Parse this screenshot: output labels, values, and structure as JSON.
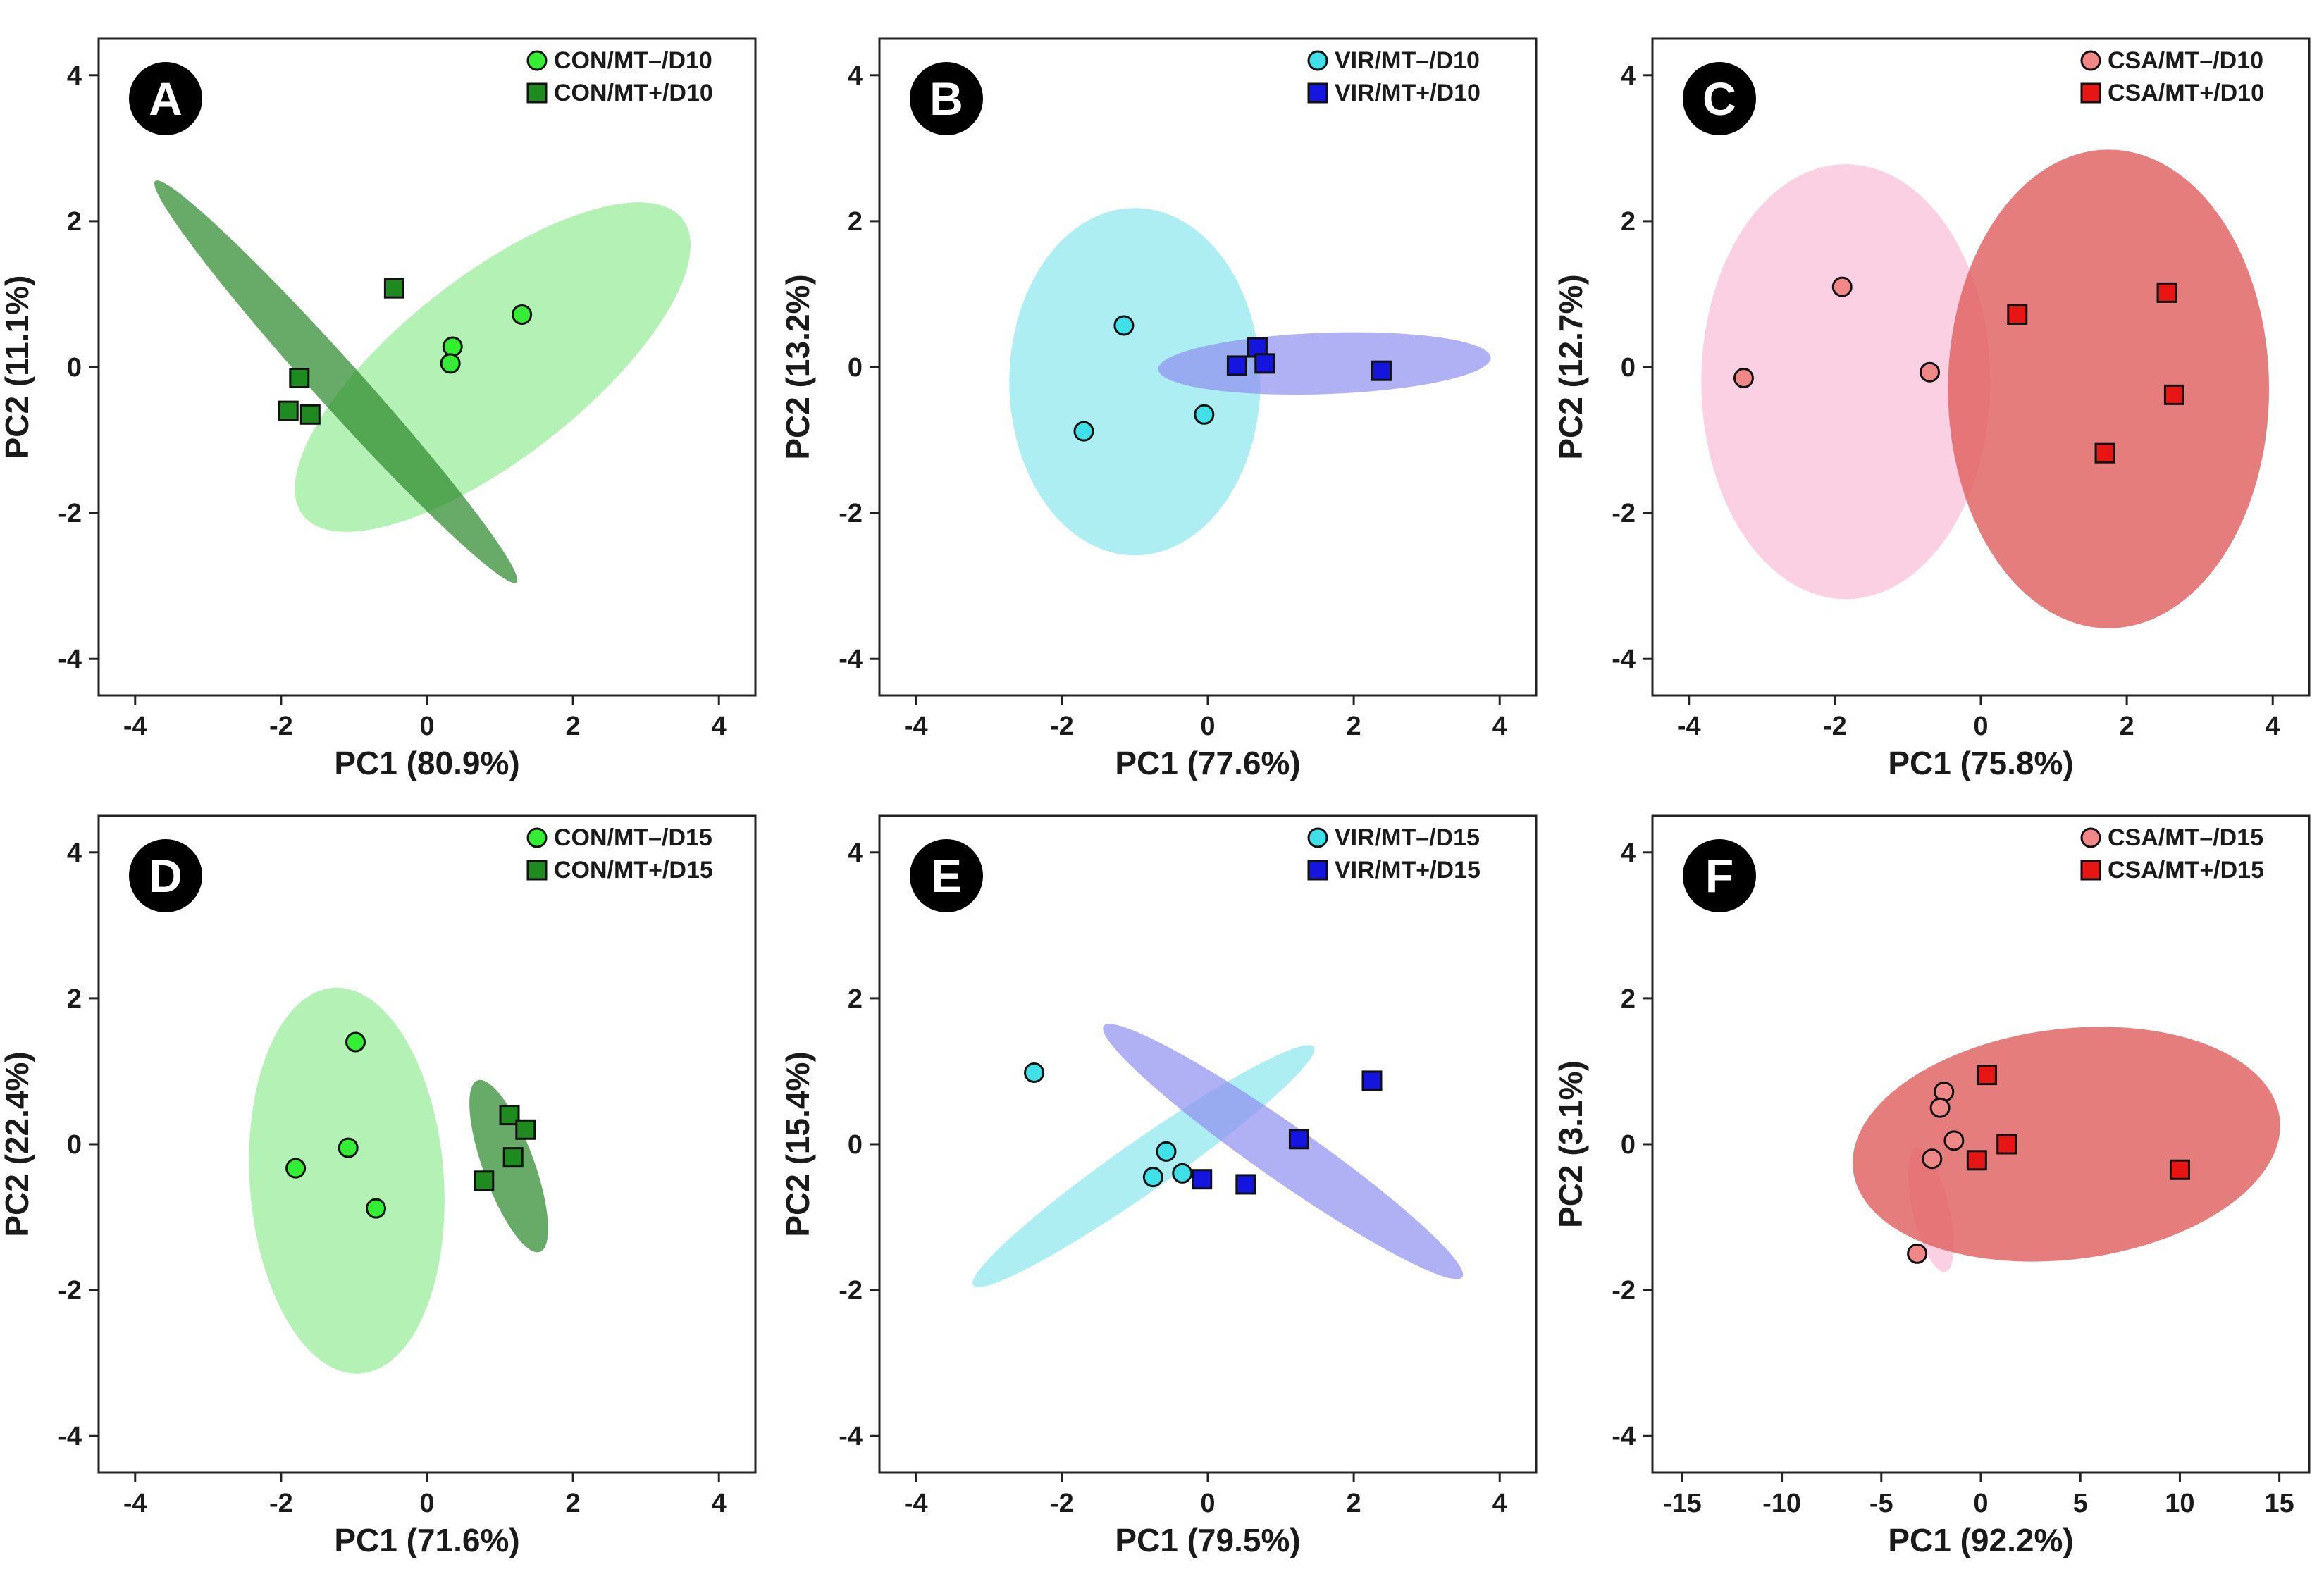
{
  "chart_data": [
    {
      "type": "scatter",
      "panel_label": "A",
      "xlabel": "PC1 (80.9%)",
      "ylabel": "PC2 (11.1%)",
      "xlim": [
        -4.5,
        4.5
      ],
      "ylim": [
        -4.5,
        4.5
      ],
      "xticks": [
        -4,
        -2,
        0,
        2,
        4
      ],
      "yticks": [
        -4,
        -2,
        0,
        2,
        4
      ],
      "xtick_labels": [
        "-4",
        "-2",
        "0",
        "2",
        "4"
      ],
      "ytick_labels": [
        "-4",
        "-2",
        "0",
        "2",
        "4"
      ],
      "legend_position": "top-right",
      "series": [
        {
          "name": "CON/MT–/D10",
          "marker": "circle",
          "color": "#33ee33",
          "ellipse_color": "#86e886",
          "ellipse_opacity": 0.62,
          "ellipse": {
            "cx": 0.9,
            "cy": 0.0,
            "rx": 3.3,
            "ry": 1.25,
            "angle": -38
          },
          "points": [
            [
              1.3,
              0.72
            ],
            [
              0.35,
              0.28
            ],
            [
              0.32,
              0.05
            ]
          ]
        },
        {
          "name": "CON/MT+/D10",
          "marker": "square",
          "color": "#1f8a1f",
          "ellipse_color": "#2e8b2e",
          "ellipse_opacity": 0.72,
          "ellipse": {
            "cx": -1.25,
            "cy": -0.2,
            "rx": 3.7,
            "ry": 0.32,
            "angle": 48
          },
          "points": [
            [
              -0.45,
              1.08
            ],
            [
              -1.75,
              -0.15
            ],
            [
              -1.9,
              -0.6
            ],
            [
              -1.6,
              -0.65
            ]
          ]
        }
      ]
    },
    {
      "type": "scatter",
      "panel_label": "B",
      "xlabel": "PC1 (77.6%)",
      "ylabel": "PC2 (13.2%)",
      "xlim": [
        -4.5,
        4.5
      ],
      "ylim": [
        -4.5,
        4.5
      ],
      "xticks": [
        -4,
        -2,
        0,
        2,
        4
      ],
      "yticks": [
        -4,
        -2,
        0,
        2,
        4
      ],
      "xtick_labels": [
        "-4",
        "-2",
        "0",
        "2",
        "4"
      ],
      "ytick_labels": [
        "-4",
        "-2",
        "0",
        "2",
        "4"
      ],
      "legend_position": "top-right",
      "series": [
        {
          "name": "VIR/MT–/D10",
          "marker": "circle",
          "color": "#40e0e8",
          "ellipse_color": "#8ee8ee",
          "ellipse_opacity": 0.72,
          "ellipse": {
            "cx": -1.0,
            "cy": -0.2,
            "rx": 1.72,
            "ry": 2.38,
            "angle": 0
          },
          "points": [
            [
              -1.15,
              0.57
            ],
            [
              -0.05,
              -0.65
            ],
            [
              -1.7,
              -0.88
            ]
          ]
        },
        {
          "name": "VIR/MT+/D10",
          "marker": "square",
          "color": "#1515e0",
          "ellipse_color": "#8f8ff0",
          "ellipse_opacity": 0.7,
          "ellipse": {
            "cx": 1.6,
            "cy": 0.05,
            "rx": 2.28,
            "ry": 0.42,
            "angle": -2
          },
          "points": [
            [
              0.4,
              0.02
            ],
            [
              0.68,
              0.27
            ],
            [
              0.78,
              0.05
            ],
            [
              2.38,
              -0.05
            ]
          ]
        }
      ]
    },
    {
      "type": "scatter",
      "panel_label": "C",
      "xlabel": "PC1 (75.8%)",
      "ylabel": "PC2 (12.7%)",
      "xlim": [
        -4.5,
        4.5
      ],
      "ylim": [
        -4.5,
        4.5
      ],
      "xticks": [
        -4,
        -2,
        0,
        2,
        4
      ],
      "yticks": [
        -4,
        -2,
        0,
        2,
        4
      ],
      "xtick_labels": [
        "-4",
        "-2",
        "0",
        "2",
        "4"
      ],
      "ytick_labels": [
        "-4",
        "-2",
        "0",
        "2",
        "4"
      ],
      "legend_position": "top-right",
      "series": [
        {
          "name": "CSA/MT–/D10",
          "marker": "circle",
          "color": "#f08888",
          "ellipse_color": "#fbc4dc",
          "ellipse_opacity": 0.8,
          "ellipse": {
            "cx": -1.85,
            "cy": -0.2,
            "rx": 1.98,
            "ry": 2.98,
            "angle": 0
          },
          "points": [
            [
              -1.9,
              1.1
            ],
            [
              -3.25,
              -0.15
            ],
            [
              -0.7,
              -0.07
            ]
          ]
        },
        {
          "name": "CSA/MT+/D10",
          "marker": "square",
          "color": "#e81515",
          "ellipse_color": "#e06060",
          "ellipse_opacity": 0.82,
          "ellipse": {
            "cx": 1.75,
            "cy": -0.3,
            "rx": 2.2,
            "ry": 3.28,
            "angle": 0
          },
          "points": [
            [
              0.5,
              0.72
            ],
            [
              2.55,
              1.02
            ],
            [
              2.65,
              -0.38
            ],
            [
              1.7,
              -1.18
            ]
          ]
        }
      ]
    },
    {
      "type": "scatter",
      "panel_label": "D",
      "xlabel": "PC1 (71.6%)",
      "ylabel": "PC2 (22.4%)",
      "xlim": [
        -4.5,
        4.5
      ],
      "ylim": [
        -4.5,
        4.5
      ],
      "xticks": [
        -4,
        -2,
        0,
        2,
        4
      ],
      "yticks": [
        -4,
        -2,
        0,
        2,
        4
      ],
      "xtick_labels": [
        "-4",
        "-2",
        "0",
        "2",
        "4"
      ],
      "ytick_labels": [
        "-4",
        "-2",
        "0",
        "2",
        "4"
      ],
      "legend_position": "top-right",
      "series": [
        {
          "name": "CON/MT–/D15",
          "marker": "circle",
          "color": "#33ee33",
          "ellipse_color": "#86e886",
          "ellipse_opacity": 0.62,
          "ellipse": {
            "cx": -1.1,
            "cy": -0.5,
            "rx": 1.33,
            "ry": 2.65,
            "angle": -4
          },
          "points": [
            [
              -0.98,
              1.4
            ],
            [
              -1.8,
              -0.33
            ],
            [
              -1.08,
              -0.05
            ],
            [
              -0.7,
              -0.88
            ]
          ]
        },
        {
          "name": "CON/MT+/D15",
          "marker": "square",
          "color": "#1f8a1f",
          "ellipse_color": "#2e8b2e",
          "ellipse_opacity": 0.72,
          "ellipse": {
            "cx": 1.12,
            "cy": -0.3,
            "rx": 1.25,
            "ry": 0.35,
            "angle": 70
          },
          "points": [
            [
              1.13,
              0.4
            ],
            [
              1.35,
              0.2
            ],
            [
              1.18,
              -0.18
            ],
            [
              0.78,
              -0.5
            ]
          ]
        }
      ]
    },
    {
      "type": "scatter",
      "panel_label": "E",
      "xlabel": "PC1 (79.5%)",
      "ylabel": "PC2 (15.4%)",
      "xlim": [
        -4.5,
        4.5
      ],
      "ylim": [
        -4.5,
        4.5
      ],
      "xticks": [
        -4,
        -2,
        0,
        2,
        4
      ],
      "yticks": [
        -4,
        -2,
        0,
        2,
        4
      ],
      "xtick_labels": [
        "-4",
        "-2",
        "0",
        "2",
        "4"
      ],
      "ytick_labels": [
        "-4",
        "-2",
        "0",
        "2",
        "4"
      ],
      "legend_position": "top-right",
      "series": [
        {
          "name": "VIR/MT–/D15",
          "marker": "circle",
          "color": "#40e0e8",
          "ellipse_color": "#8ee8ee",
          "ellipse_opacity": 0.72,
          "ellipse": {
            "cx": -0.88,
            "cy": -0.3,
            "rx": 2.85,
            "ry": 0.35,
            "angle": -35
          },
          "points": [
            [
              -2.38,
              0.98
            ],
            [
              -0.57,
              -0.1
            ],
            [
              -0.75,
              -0.45
            ],
            [
              -0.35,
              -0.4
            ]
          ]
        },
        {
          "name": "VIR/MT+/D15",
          "marker": "square",
          "color": "#1515e0",
          "ellipse_color": "#8f8ff0",
          "ellipse_opacity": 0.7,
          "ellipse": {
            "cx": 1.03,
            "cy": -0.1,
            "rx": 3.0,
            "ry": 0.38,
            "angle": 35
          },
          "points": [
            [
              2.25,
              0.87
            ],
            [
              1.25,
              0.07
            ],
            [
              -0.08,
              -0.48
            ],
            [
              0.52,
              -0.55
            ]
          ]
        }
      ]
    },
    {
      "type": "scatter",
      "panel_label": "F",
      "xlabel": "PC1 (92.2%)",
      "ylabel": "PC2 (3.1%)",
      "xlim": [
        -16.5,
        16.5
      ],
      "ylim": [
        -4.5,
        4.5
      ],
      "xticks": [
        -15,
        -10,
        -5,
        0,
        5,
        10,
        15
      ],
      "yticks": [
        -4,
        -2,
        0,
        2,
        4
      ],
      "xtick_labels": [
        "-15",
        "-10",
        "-5",
        "0",
        "5",
        "10",
        "15"
      ],
      "ytick_labels": [
        "-4",
        "-2",
        "0",
        "2",
        "4"
      ],
      "legend_position": "top-right",
      "series": [
        {
          "name": "CSA/MT–/D15",
          "marker": "circle",
          "color": "#f08888",
          "ellipse_color": "#fbc4dc",
          "ellipse_opacity": 0.8,
          "ellipse": {
            "cx": -2.5,
            "cy": -0.9,
            "rx": 3.2,
            "ry": 0.25,
            "angle": 77
          },
          "points": [
            [
              -1.85,
              0.72
            ],
            [
              -2.05,
              0.5
            ],
            [
              -1.35,
              0.05
            ],
            [
              -2.45,
              -0.2
            ],
            [
              -3.2,
              -1.5
            ]
          ]
        },
        {
          "name": "CSA/MT+/D15",
          "marker": "square",
          "color": "#e81515",
          "ellipse_color": "#e06060",
          "ellipse_opacity": 0.82,
          "ellipse": {
            "cx": 4.3,
            "cy": 0.0,
            "rx": 10.8,
            "ry": 1.58,
            "angle": -7
          },
          "points": [
            [
              0.3,
              0.95
            ],
            [
              -0.2,
              -0.22
            ],
            [
              1.3,
              0.0
            ],
            [
              10.0,
              -0.35
            ]
          ]
        }
      ]
    }
  ]
}
